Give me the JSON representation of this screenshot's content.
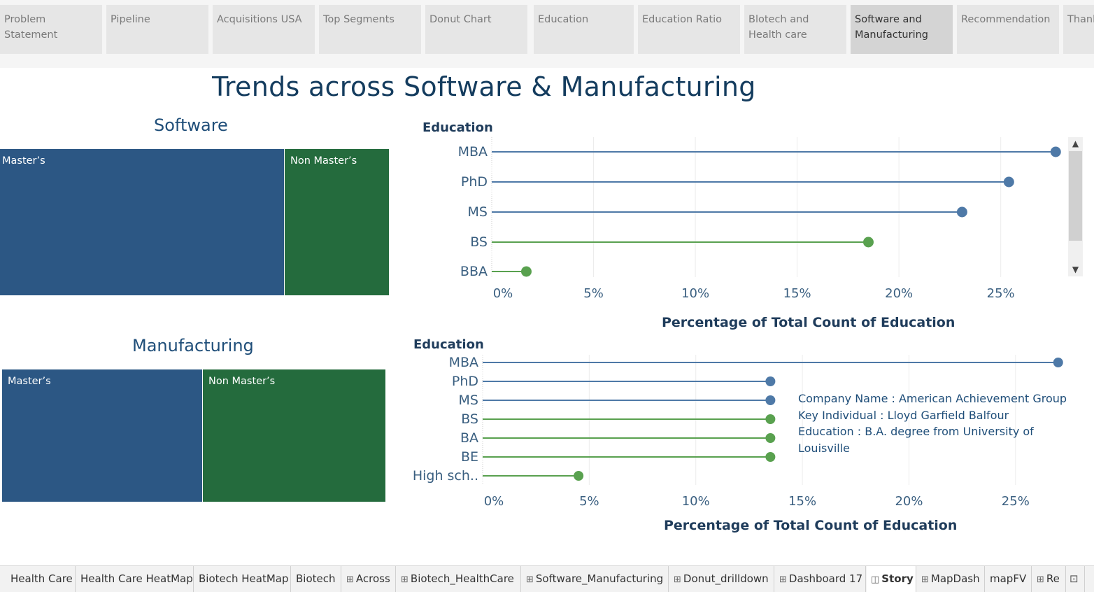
{
  "story_tabs": [
    {
      "label": "Problem\nStatement"
    },
    {
      "label": "Pipeline"
    },
    {
      "label": "Acquisitions USA"
    },
    {
      "label": "Top Segments"
    },
    {
      "label": "Donut Chart"
    },
    {
      "label": "Education"
    },
    {
      "label": "Education Ratio"
    },
    {
      "label": "Blotech and\nHealth care"
    },
    {
      "label": "Software and\nManufacturing",
      "active": true
    },
    {
      "label": "Recommendation"
    },
    {
      "label": "Thank"
    }
  ],
  "dashboard": {
    "title": "Trends across Software & Manufacturing",
    "software_title": "Software",
    "manufacturing_title": "Manufacturing"
  },
  "colors": {
    "masters": "#2c5784",
    "non_masters": "#246b3d",
    "dot_blue": "#4e79a7",
    "dot_green": "#59a14f"
  },
  "treemaps": {
    "software": {
      "masters_label": "Master’s",
      "non_masters_label": "Non Master’s",
      "masters_share": 0.731
    },
    "manufacturing": {
      "masters_label": "Master’s",
      "non_masters_label": "Non Master’s",
      "masters_share": 0.521
    }
  },
  "chart_data": [
    {
      "type": "lollipop",
      "name": "software-education",
      "ylabel": "Education",
      "xlabel": "Percentage of Total Count of Education",
      "categories": [
        "MBA",
        "PhD",
        "MS",
        "BS",
        "BBA"
      ],
      "values": [
        27.7,
        25.4,
        23.1,
        18.5,
        1.7
      ],
      "groups": [
        "masters",
        "masters",
        "masters",
        "non_masters",
        "non_masters"
      ],
      "xlim": [
        0,
        28
      ],
      "xticks": [
        "0%",
        "5%",
        "10%",
        "15%",
        "20%",
        "25%"
      ],
      "grid": true
    },
    {
      "type": "lollipop",
      "name": "manufacturing-education",
      "ylabel": "Education",
      "xlabel": "Percentage of Total Count of Education",
      "categories": [
        "MBA",
        "PhD",
        "MS",
        "BS",
        "BA",
        "BE",
        "High sch.."
      ],
      "values": [
        27.0,
        13.5,
        13.5,
        13.5,
        13.5,
        13.5,
        4.5
      ],
      "groups": [
        "masters",
        "masters",
        "masters",
        "non_masters",
        "non_masters",
        "non_masters",
        "non_masters"
      ],
      "xlim": [
        0,
        27.5
      ],
      "xticks": [
        "0%",
        "5%",
        "10%",
        "15%",
        "20%",
        "25%"
      ],
      "grid": true
    }
  ],
  "tooltip": {
    "line1": "Company Name : American Achievement Group",
    "line2": "Key Individual : Lloyd Garfield Balfour",
    "line3": "Education : B.A. degree from University of Louisville"
  },
  "sheet_tabs": [
    {
      "label": "Health Care",
      "icon": ""
    },
    {
      "label": "Health Care HeatMap",
      "icon": ""
    },
    {
      "label": "Biotech HeatMap",
      "icon": ""
    },
    {
      "label": "Biotech",
      "icon": ""
    },
    {
      "label": "Across",
      "icon": "⊞"
    },
    {
      "label": "Biotech_HealthCare",
      "icon": "⊞"
    },
    {
      "label": "Software_Manufacturing",
      "icon": "⊞"
    },
    {
      "label": "Donut_drilldown",
      "icon": "⊞"
    },
    {
      "label": "Dashboard 17",
      "icon": "⊞"
    },
    {
      "label": "Story",
      "icon": "◫",
      "active": true
    },
    {
      "label": "MapDash",
      "icon": "⊞"
    },
    {
      "label": "mapFV",
      "icon": ""
    },
    {
      "label": "Re",
      "icon": "⊞"
    }
  ]
}
